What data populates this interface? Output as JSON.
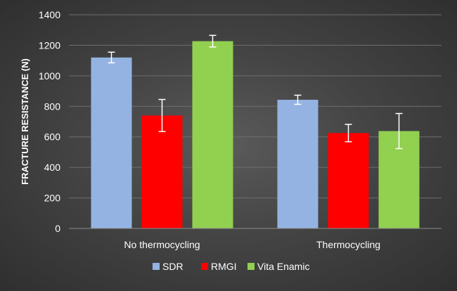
{
  "chart_data": {
    "type": "bar",
    "title": "",
    "xlabel": "",
    "ylabel": "FRACTURE RESISTANCE (N)",
    "ylim": [
      0,
      1400
    ],
    "yticks": [
      0,
      200,
      400,
      600,
      800,
      1000,
      1200,
      1400
    ],
    "categories": [
      "No thermocycling",
      "Thermocycling"
    ],
    "series": [
      {
        "name": "SDR",
        "color": "#94b3e3",
        "values": [
          1120,
          843
        ],
        "errors": [
          35,
          30
        ]
      },
      {
        "name": "RMGI",
        "color": "#ff0000",
        "values": [
          740,
          625
        ],
        "errors": [
          105,
          57
        ]
      },
      {
        "name": "Vita Enamic",
        "color": "#92d050",
        "values": [
          1227,
          638
        ],
        "errors": [
          38,
          115
        ]
      }
    ],
    "legend": "bottom",
    "grid": true
  }
}
